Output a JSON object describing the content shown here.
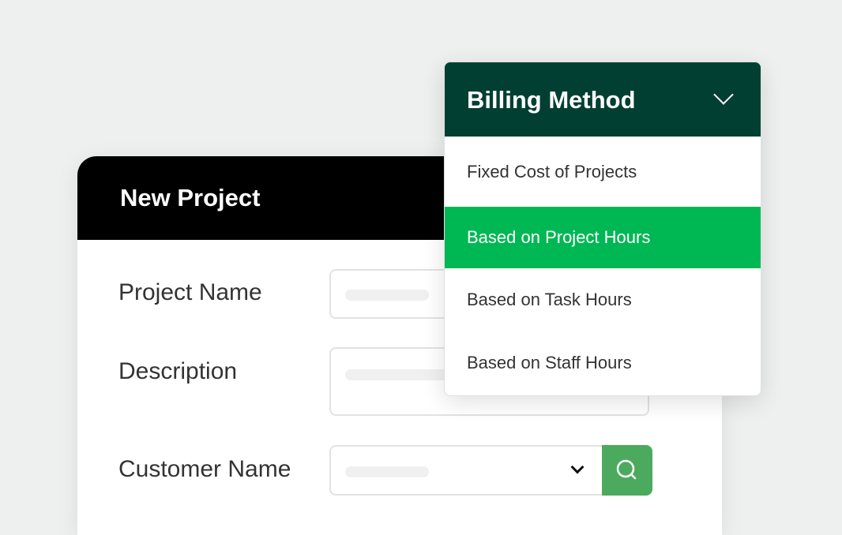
{
  "form": {
    "title": "New Project",
    "fields": [
      {
        "label": "Project Name"
      },
      {
        "label": "Description"
      },
      {
        "label": "Customer Name"
      }
    ]
  },
  "billing": {
    "title": "Billing Method",
    "options": [
      {
        "label": "Fixed Cost of Projects"
      },
      {
        "label": "Based on Project Hours",
        "selected": true
      },
      {
        "label": "Based on Task Hours"
      },
      {
        "label": "Based on Staff Hours"
      }
    ]
  },
  "colors": {
    "background": "#edf0ee",
    "dropdown_header": "#003f32",
    "selected": "#00b853",
    "search_button": "#4caa5e"
  },
  "icons": {
    "dropdown": "chevron-down-icon",
    "search": "search-icon"
  }
}
